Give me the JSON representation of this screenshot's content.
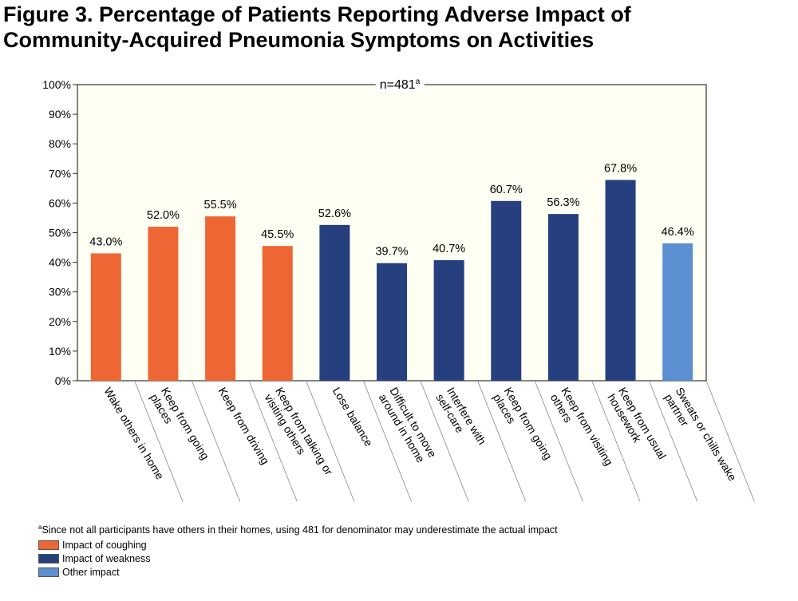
{
  "title": {
    "line1": "Figure 3. Percentage of Patients Reporting Adverse Impact of",
    "line2": "Community-Acquired Pneumonia Symptoms on Activities"
  },
  "chart_data": {
    "type": "bar",
    "annotation": "n=481",
    "annotation_sup": "a",
    "ylim": [
      0,
      100
    ],
    "yticks": [
      "0%",
      "10%",
      "20%",
      "30%",
      "40%",
      "50%",
      "60%",
      "70%",
      "80%",
      "90%",
      "100%"
    ],
    "grid": false,
    "categories": [
      [
        "Wake others in home"
      ],
      [
        "Keep from going",
        "places"
      ],
      [
        "Keep from driving"
      ],
      [
        "Keep from talking or",
        "visiting others"
      ],
      [
        "Lose balance"
      ],
      [
        "Difficult to move",
        "around in home"
      ],
      [
        "Interfere with",
        "self-care"
      ],
      [
        "Keep from going",
        "places"
      ],
      [
        "Keep from visiting",
        "others"
      ],
      [
        "Keep from usual",
        "housework"
      ],
      [
        "Sweats or chills wake",
        "partner"
      ]
    ],
    "values": [
      43.0,
      52.0,
      55.5,
      45.5,
      52.6,
      39.7,
      40.7,
      60.7,
      56.3,
      67.8,
      46.4
    ],
    "value_labels": [
      "43.0%",
      "52.0%",
      "55.5%",
      "45.5%",
      "52.6%",
      "39.7%",
      "40.7%",
      "60.7%",
      "56.3%",
      "67.8%",
      "46.4%"
    ],
    "bar_groups": [
      0,
      0,
      0,
      0,
      1,
      1,
      1,
      1,
      1,
      1,
      2
    ],
    "groups": [
      {
        "name": "Impact of coughing",
        "color": "#ee6633"
      },
      {
        "name": "Impact of weakness",
        "color": "#263f7e"
      },
      {
        "name": "Other impact",
        "color": "#5b8fd2"
      }
    ],
    "legend_position": "bottom-left"
  },
  "footnote": {
    "marker": "a",
    "text": "Since not all participants have others in their homes, using 481 for denominator may underestimate the actual impact"
  }
}
